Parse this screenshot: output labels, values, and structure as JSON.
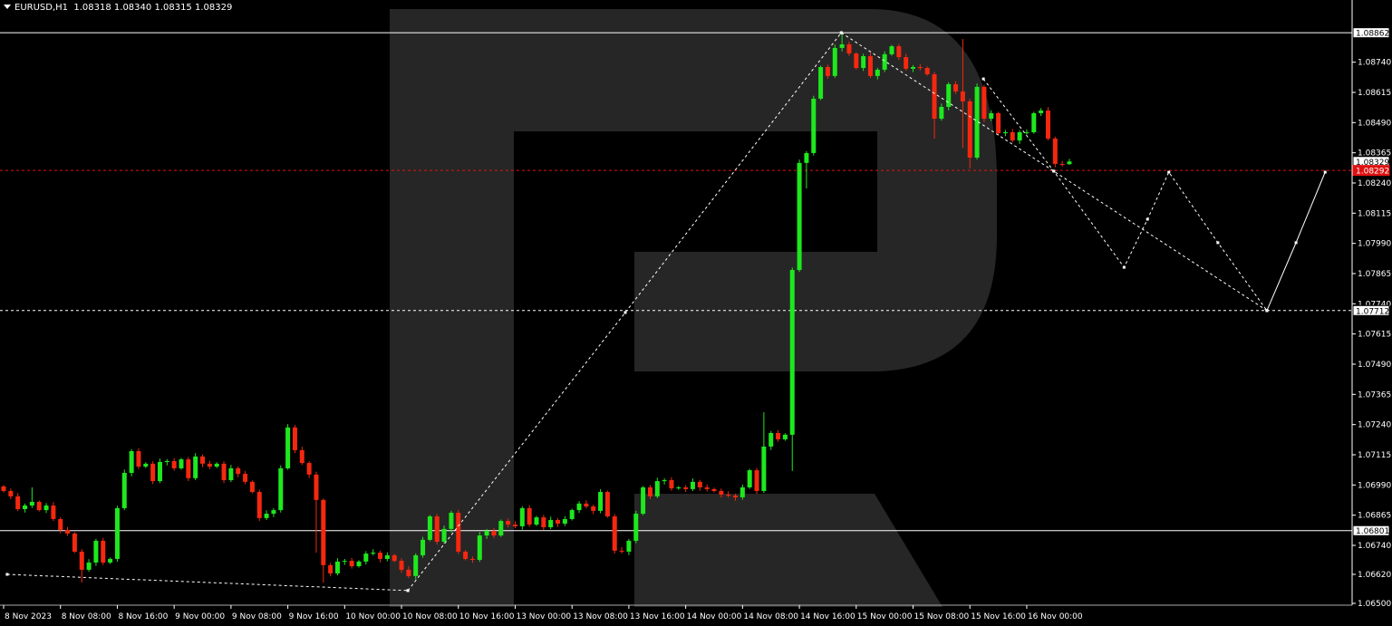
{
  "header": {
    "symbol": "EURUSD,H1",
    "ohlc": "1.08318 1.08340 1.08315 1.08329"
  },
  "colors": {
    "background": "#000000",
    "bull": "#1ee81e",
    "bear": "#f5280f",
    "watermark": "#262626",
    "bid_line": "#e01010",
    "lines": "#ffffff"
  },
  "chart_data": {
    "type": "candlestick",
    "title": "EURUSD,H1",
    "ylim": [
      1.065,
      1.0892
    ],
    "price_ticks": [
      "1.08740",
      "1.08615",
      "1.08490",
      "1.08365",
      "1.08240",
      "1.08115",
      "1.07990",
      "1.07865",
      "1.07740",
      "1.07615",
      "1.07490",
      "1.07365",
      "1.07240",
      "1.07115",
      "1.06990",
      "1.06865",
      "1.06740",
      "1.06620",
      "1.06500"
    ],
    "time_labels": [
      "8 Nov 2023",
      "8 Nov 08:00",
      "8 Nov 16:00",
      "9 Nov 00:00",
      "9 Nov 08:00",
      "9 Nov 16:00",
      "10 Nov 00:00",
      "10 Nov 08:00",
      "10 Nov 16:00",
      "13 Nov 00:00",
      "13 Nov 08:00",
      "13 Nov 16:00",
      "14 Nov 00:00",
      "14 Nov 08:00",
      "14 Nov 16:00",
      "15 Nov 00:00",
      "15 Nov 08:00",
      "15 Nov 16:00",
      "16 Nov 00:00"
    ],
    "first_open": 1.06984,
    "closes": [
      1.06965,
      1.06943,
      1.0689,
      1.06905,
      1.0692,
      1.06886,
      1.06905,
      1.06849,
      1.06804,
      1.06789,
      1.06714,
      1.06639,
      1.06669,
      1.06759,
      1.06669,
      1.06684,
      1.06894,
      1.0704,
      1.0713,
      1.07066,
      1.07078,
      1.07006,
      1.07085,
      1.07089,
      1.07059,
      1.07096,
      1.07018,
      1.07108,
      1.07078,
      1.07066,
      1.07078,
      1.0701,
      1.07059,
      1.07036,
      1.07003,
      1.06961,
      1.06853,
      1.06871,
      1.06886,
      1.07059,
      1.07228,
      1.07134,
      1.07081,
      1.07033,
      1.06928,
      1.06658,
      1.06624,
      1.06673,
      1.06676,
      1.06654,
      1.06673,
      1.06706,
      1.0671,
      1.06684,
      1.06699,
      1.06676,
      1.06639,
      1.06613,
      1.06699,
      1.06763,
      1.0686,
      1.06755,
      1.06808,
      1.06875,
      1.06714,
      1.06684,
      1.0668,
      1.06781,
      1.068,
      1.06781,
      1.06841,
      1.06826,
      1.06819,
      1.06894,
      1.06826,
      1.06856,
      1.06815,
      1.06845,
      1.0683,
      1.06849,
      1.06886,
      1.06913,
      1.06901,
      1.06883,
      1.06961,
      1.0686,
      1.06718,
      1.06714,
      1.06759,
      1.06871,
      1.0698,
      1.06943,
      1.07006,
      1.0701,
      1.06976,
      1.0698,
      1.06973,
      1.07003,
      1.0698,
      1.06973,
      1.06965,
      1.0695,
      1.06946,
      1.06939,
      1.0698,
      1.07051,
      1.06965,
      1.07149,
      1.07205,
      1.07179,
      1.07198,
      1.0788,
      1.08323,
      1.08364,
      1.08589,
      1.0872,
      1.08683,
      1.08799,
      1.08814,
      1.08776,
      1.08716,
      1.08765,
      1.08683,
      1.08709,
      1.08773,
      1.08806,
      1.08761,
      1.08713,
      1.0872,
      1.08716,
      1.0869,
      1.08506,
      1.08555,
      1.08649,
      1.08619,
      1.08578,
      1.08345,
      1.08638,
      1.08506,
      1.08529,
      1.08446,
      1.0845,
      1.08416,
      1.0845,
      1.0845,
      1.08529,
      1.0854,
      1.08424,
      1.08319,
      1.08318,
      1.08329
    ],
    "wick_extremes": {
      "4": [
        1.0698,
        null
      ],
      "11": [
        null,
        1.06586
      ],
      "40": [
        1.07242,
        null
      ],
      "44": [
        null,
        1.0671
      ],
      "45": [
        null,
        1.06586
      ],
      "107": [
        1.07291,
        null
      ],
      "111": [
        null,
        1.07048
      ],
      "113": [
        null,
        1.08217
      ],
      "118": [
        1.08866,
        null
      ],
      "131": [
        null,
        1.08424
      ],
      "135": [
        1.08836,
        1.08386
      ],
      "136": [
        null,
        1.083
      ],
      "150": [
        1.0834,
        1.08315
      ]
    },
    "horizontal_lines": [
      {
        "price": 1.08862,
        "label": "1.08862",
        "style": "solid"
      },
      {
        "price": 1.07712,
        "label": "1.07712",
        "style": "dashed"
      },
      {
        "price": 1.06801,
        "label": "1.06801",
        "style": "solid"
      }
    ],
    "current_price": {
      "price": 1.08329,
      "label": "1.08329"
    },
    "bid_line": {
      "price": 1.08292,
      "label": "1.08292"
    },
    "trend_lines": [
      {
        "style": "dashed",
        "points": [
          [
            0.5,
            1.0662
          ],
          [
            56.9,
            1.06553
          ]
        ]
      },
      {
        "style": "dashed",
        "points": [
          [
            56.9,
            1.06553
          ],
          [
            87.5,
            1.07704
          ],
          [
            117.9,
            1.08862
          ]
        ]
      },
      {
        "style": "dashed",
        "points": [
          [
            117.9,
            1.08862
          ],
          [
            147.8,
            1.08289
          ],
          [
            177.8,
            1.07712
          ]
        ]
      },
      {
        "style": "dashed",
        "points": [
          [
            137.9,
            1.08671
          ],
          [
            147.8,
            1.08289
          ],
          [
            157.7,
            1.07891
          ],
          [
            161,
            1.0809
          ],
          [
            164,
            1.08285
          ],
          [
            170.9,
            1.07993
          ],
          [
            177.8,
            1.07712
          ]
        ]
      },
      {
        "style": "solid",
        "points": [
          [
            177.8,
            1.07712
          ],
          [
            181.9,
            1.07993
          ],
          [
            186,
            1.08285
          ]
        ]
      }
    ]
  }
}
